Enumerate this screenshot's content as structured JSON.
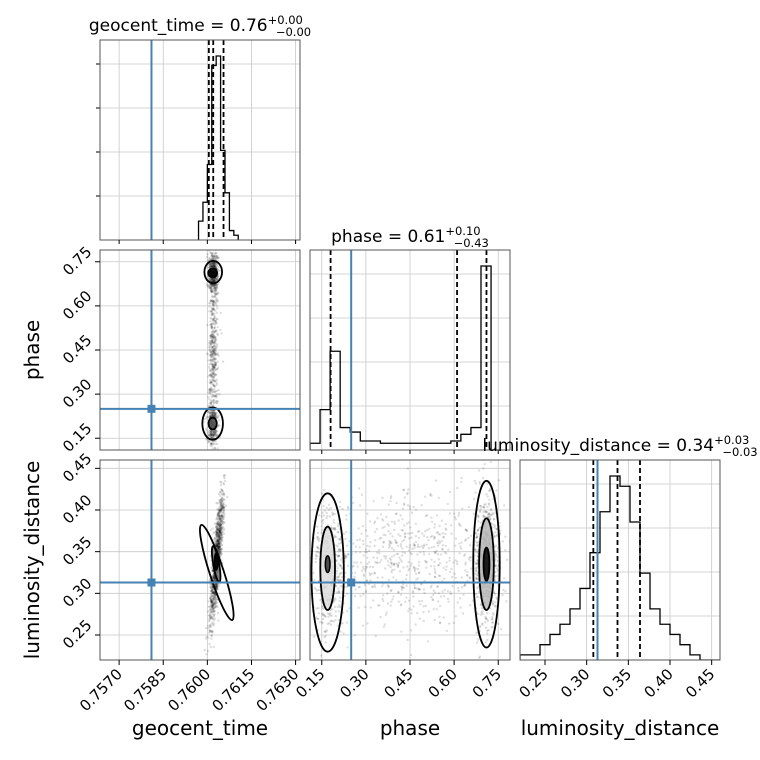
{
  "colors": {
    "truth": "#4682b4",
    "hist": "#000000",
    "grid": "#c8c8c8",
    "samples": "#000000"
  },
  "chart_data": {
    "type": "corner",
    "parameters": [
      "geocent_time",
      "phase",
      "luminosity_distance"
    ],
    "truths": {
      "geocent_time": 0.7581,
      "phase": 0.25,
      "luminosity_distance": 0.313
    },
    "titles": [
      {
        "param": "geocent_time",
        "text": "geocent_time = 0.76",
        "sup": "+0.00",
        "sub": "−0.00"
      },
      {
        "param": "phase",
        "text": "phase = 0.61",
        "sup": "+0.10",
        "sub": "−0.43"
      },
      {
        "param": "luminosity_distance",
        "text": "luminosity_distance = 0.34",
        "sup": "+0.03",
        "sub": "−0.03"
      }
    ],
    "xlabels": [
      "geocent_time",
      "phase",
      "luminosity_distance"
    ],
    "ylabels": {
      "row2": "phase",
      "row3": "luminosity_distance"
    },
    "ticks": {
      "geocent_time": [
        "0.7570",
        "0.7585",
        "0.7600",
        "0.7615",
        "0.7630"
      ],
      "phase": [
        "0.15",
        "0.30",
        "0.45",
        "0.60",
        "0.75"
      ],
      "luminosity_distance": [
        "0.25",
        "0.30",
        "0.35",
        "0.40",
        "0.45"
      ]
    },
    "ranges": {
      "geocent_time": [
        0.75635,
        0.76315
      ],
      "phase": [
        0.11,
        0.79
      ],
      "luminosity_distance": [
        0.22,
        0.46
      ]
    },
    "quantiles": {
      "geocent_time": [
        0.76005,
        0.7602,
        0.76055
      ],
      "phase": [
        0.18,
        0.61,
        0.71
      ],
      "luminosity_distance": [
        0.308,
        0.337,
        0.364
      ]
    },
    "histograms": {
      "geocent_time": {
        "edges": [
          0.7597,
          0.75985,
          0.76,
          0.76015,
          0.7603,
          0.76045,
          0.7606,
          0.76075,
          0.7609,
          0.76105
        ],
        "counts": [
          4,
          8,
          16,
          37,
          39,
          19,
          10,
          2,
          1
        ]
      },
      "phase": {
        "edges": [
          0.11,
          0.1442,
          0.1784,
          0.2126,
          0.2468,
          0.281,
          0.3152,
          0.3494,
          0.3836,
          0.4178,
          0.452,
          0.4862,
          0.5204,
          0.5546,
          0.5888,
          0.623,
          0.6572,
          0.6914,
          0.7256,
          0.7598
        ],
        "counts": [
          3,
          18,
          44,
          10,
          8,
          4,
          4,
          3,
          3,
          3,
          3,
          3,
          3,
          3,
          4,
          7,
          10,
          82,
          0
        ]
      },
      "luminosity_distance": {
        "edges": [
          0.22,
          0.232,
          0.244,
          0.256,
          0.268,
          0.28,
          0.292,
          0.304,
          0.316,
          0.328,
          0.34,
          0.352,
          0.364,
          0.376,
          0.388,
          0.4,
          0.412,
          0.424,
          0.436,
          0.448,
          0.46
        ],
        "counts": [
          1,
          1,
          3,
          5,
          7,
          10,
          14,
          21,
          29,
          36,
          34,
          27,
          17,
          10,
          7,
          5,
          3,
          1,
          0,
          0
        ]
      }
    }
  }
}
